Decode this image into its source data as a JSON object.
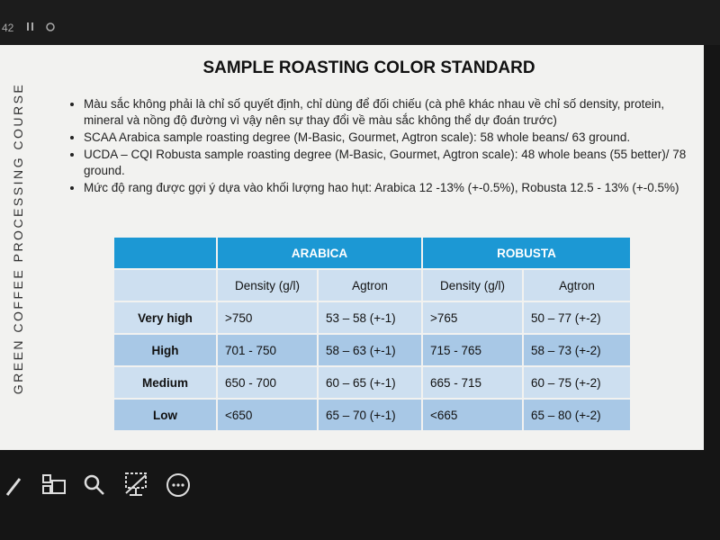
{
  "top_bar": {
    "counter": "42"
  },
  "slide": {
    "side_label": "GREEN COFFEE PROCESSING COURSE",
    "title": "SAMPLE ROASTING COLOR STANDARD",
    "bullets": [
      "Màu sắc không phải là chỉ số quyết định, chỉ dùng để đối chiếu (cà phê khác nhau về chỉ số density, protein, mineral và nồng độ đường vì vậy nên sự thay đổi về màu sắc không thể dự đoán trước)",
      "SCAA Arabica sample roasting degree (M-Basic, Gourmet, Agtron scale): 58 whole beans/ 63 ground.",
      "UCDA – CQI Robusta sample roasting degree (M-Basic, Gourmet, Agtron scale): 48 whole beans (55 better)/ 78 ground.",
      "Mức độ rang được gợi ý dựa vào khối lượng hao hụt: Arabica 12 -13% (+-0.5%), Robusta 12.5 - 13% (+-0.5%)"
    ],
    "table": {
      "groups": [
        "ARABICA",
        "ROBUSTA"
      ],
      "columns": [
        "Density (g/l)",
        "Agtron",
        "Density (g/l)",
        "Agtron"
      ],
      "rows": [
        [
          "Very high",
          ">750",
          "53 – 58 (+-1)",
          ">765",
          "50 – 77 (+-2)"
        ],
        [
          "High",
          "701 - 750",
          "58 – 63 (+-1)",
          "715 - 765",
          "58 – 73 (+-2)"
        ],
        [
          "Medium",
          "650 - 700",
          "60 – 65 (+-1)",
          "665 - 715",
          "60 – 75 (+-2)"
        ],
        [
          "Low",
          "<650",
          "65 – 70 (+-1)",
          "<665",
          "65 – 80 (+-2)"
        ]
      ]
    }
  }
}
